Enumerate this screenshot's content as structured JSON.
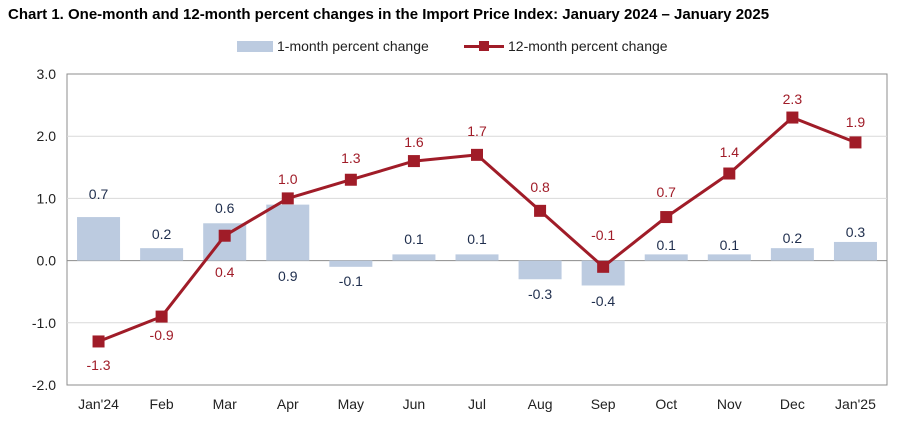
{
  "chart_data": {
    "type": "bar+line",
    "title": "Chart 1. One-month and 12-month percent changes in the Import Price Index: January 2024 – January 2025",
    "categories": [
      "Jan'24",
      "Feb",
      "Mar",
      "Apr",
      "May",
      "Jun",
      "Jul",
      "Aug",
      "Sep",
      "Oct",
      "Nov",
      "Dec",
      "Jan'25"
    ],
    "series": [
      {
        "name": "1-month percent change",
        "type": "bar",
        "color": "#bccbe0",
        "label_color": "#1f2e4d",
        "values": [
          0.7,
          0.2,
          0.6,
          0.9,
          -0.1,
          0.1,
          0.1,
          -0.3,
          -0.4,
          0.1,
          0.1,
          0.2,
          0.3
        ],
        "labels": [
          "0.7",
          "0.2",
          "0.6",
          "0.9",
          "-0.1",
          "0.1",
          "0.1",
          "-0.3",
          "-0.4",
          "0.1",
          "0.1",
          "0.2",
          "0.3"
        ]
      },
      {
        "name": "12-month percent change",
        "type": "line",
        "color": "#a01c28",
        "label_color": "#a01c28",
        "values": [
          -1.3,
          -0.9,
          0.4,
          1.0,
          1.3,
          1.6,
          1.7,
          0.8,
          -0.1,
          0.7,
          1.4,
          2.3,
          1.9
        ],
        "labels": [
          "-1.3",
          "-0.9",
          "0.4",
          "1.0",
          "1.3",
          "1.6",
          "1.7",
          "0.8",
          "-0.1",
          "0.7",
          "1.4",
          "2.3",
          "1.9"
        ]
      }
    ],
    "ylim": [
      -2.0,
      3.0
    ],
    "yticks": [
      3.0,
      2.0,
      1.0,
      0.0,
      -1.0,
      -2.0
    ],
    "ytick_labels": [
      "3.0",
      "2.0",
      "1.0",
      "0.0",
      "-1.0",
      "-2.0"
    ],
    "grid": true,
    "legend_position": "top-center",
    "xlabel": "",
    "ylabel": ""
  }
}
